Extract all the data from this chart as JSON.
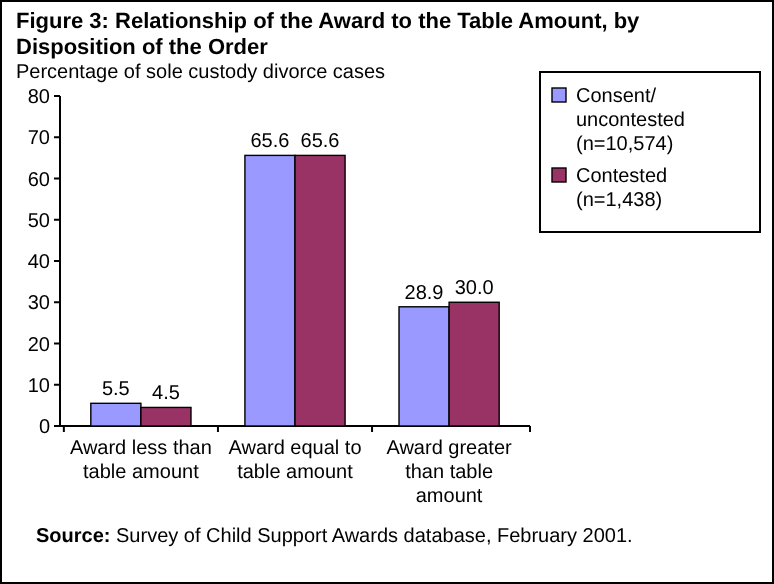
{
  "chart_data": {
    "type": "bar",
    "title": "Figure 3: Relationship of the Award to the Table Amount, by Disposition of the Order",
    "ylabel": "Percentage of sole custody divorce cases",
    "categories": [
      "Award less than table amount",
      "Award equal to table amount",
      "Award greater than table amount"
    ],
    "series": [
      {
        "name": "Consent/ uncontested (n=10,574)",
        "color": "#9999ff",
        "values": [
          5.5,
          65.6,
          28.9
        ],
        "value_labels": [
          "5.5",
          "65.6",
          "28.9"
        ]
      },
      {
        "name": "Contested (n=1,438)",
        "color": "#993366",
        "values": [
          4.5,
          65.6,
          30.0
        ],
        "value_labels": [
          "4.5",
          "65.6",
          "30.0"
        ]
      }
    ],
    "ylim": [
      0,
      80
    ],
    "yticks": [
      0,
      10,
      20,
      30,
      40,
      50,
      60,
      70,
      80
    ],
    "grid": false,
    "legend": "right",
    "annotations": [
      "Source: Survey of Child Support Awards database, February 2001."
    ]
  }
}
